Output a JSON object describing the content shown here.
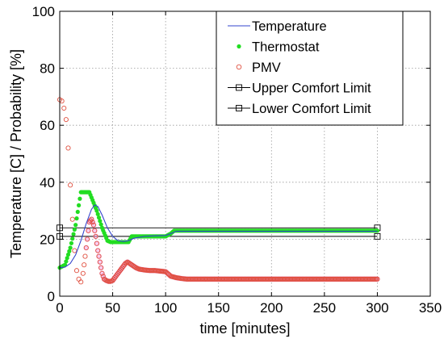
{
  "chart_data": {
    "type": "line",
    "xlabel": "time [minutes]",
    "ylabel": "Temperature [C] /  Probability [%]",
    "xlim": [
      0,
      350
    ],
    "ylim": [
      0,
      100
    ],
    "x_ticks": [
      "0",
      "50",
      "100",
      "150",
      "200",
      "250",
      "300",
      "350"
    ],
    "y_ticks": [
      "0",
      "20",
      "40",
      "60",
      "80",
      "100"
    ],
    "grid": true,
    "legend_position": "top-right",
    "series": [
      {
        "name": "Temperature",
        "style": "line",
        "color": "#3344cc",
        "x": [
          0,
          5,
          10,
          15,
          20,
          25,
          30,
          33,
          36,
          40,
          45,
          50,
          55,
          60,
          65,
          70,
          80,
          90,
          100,
          105,
          110,
          150,
          200,
          250,
          300
        ],
        "y": [
          10,
          10.2,
          11.5,
          14.5,
          19.5,
          25.5,
          30.5,
          32,
          31.5,
          28.5,
          24,
          21,
          19.5,
          19.2,
          19.5,
          20.3,
          21,
          21.2,
          21.3,
          22,
          22.8,
          22.8,
          22.8,
          22.8,
          22.8
        ]
      },
      {
        "name": "Thermostat",
        "style": "marker-dot",
        "color": "#22dd22",
        "x": [
          0,
          5,
          10,
          15,
          20,
          25,
          28,
          35,
          40,
          45,
          48,
          50,
          60,
          65,
          68,
          100,
          105,
          108,
          300
        ],
        "y": [
          10,
          11,
          17,
          25,
          36.5,
          36.5,
          36.5,
          30,
          24,
          19.5,
          19,
          19,
          19,
          19,
          21,
          21,
          22,
          23,
          23
        ]
      },
      {
        "name": "PMV",
        "style": "marker-circle",
        "color": "#e05040",
        "x": [
          0,
          2,
          4,
          6,
          8,
          10,
          12,
          14,
          16,
          18,
          20,
          22,
          24,
          26,
          28,
          30,
          32,
          34,
          36,
          38,
          40,
          42,
          44,
          46,
          48,
          50,
          52,
          54,
          56,
          58,
          60,
          62,
          64,
          66,
          68,
          70,
          72,
          75,
          80,
          85,
          90,
          95,
          100,
          105,
          110,
          115,
          120,
          150,
          200,
          250,
          300
        ],
        "y": [
          69,
          68.5,
          66,
          62,
          52,
          39,
          27,
          16,
          9,
          6,
          5,
          8,
          14,
          20,
          26,
          27,
          25,
          21,
          16,
          12,
          8,
          6,
          5.5,
          5.2,
          5.2,
          5.5,
          6.5,
          7.5,
          8.5,
          9.5,
          10.5,
          11.5,
          12,
          11.5,
          11,
          10.5,
          10,
          9.5,
          9.2,
          9,
          9,
          8.8,
          8.6,
          7,
          6.5,
          6.2,
          6,
          6,
          6,
          6,
          6
        ]
      },
      {
        "name": "Upper Comfort Limit",
        "style": "line-square",
        "color": "#000000",
        "x": [
          0,
          300
        ],
        "y": [
          24,
          24
        ]
      },
      {
        "name": "Lower Comfort Limit",
        "style": "line-square",
        "color": "#000000",
        "x": [
          0,
          300
        ],
        "y": [
          21,
          21
        ]
      }
    ]
  }
}
